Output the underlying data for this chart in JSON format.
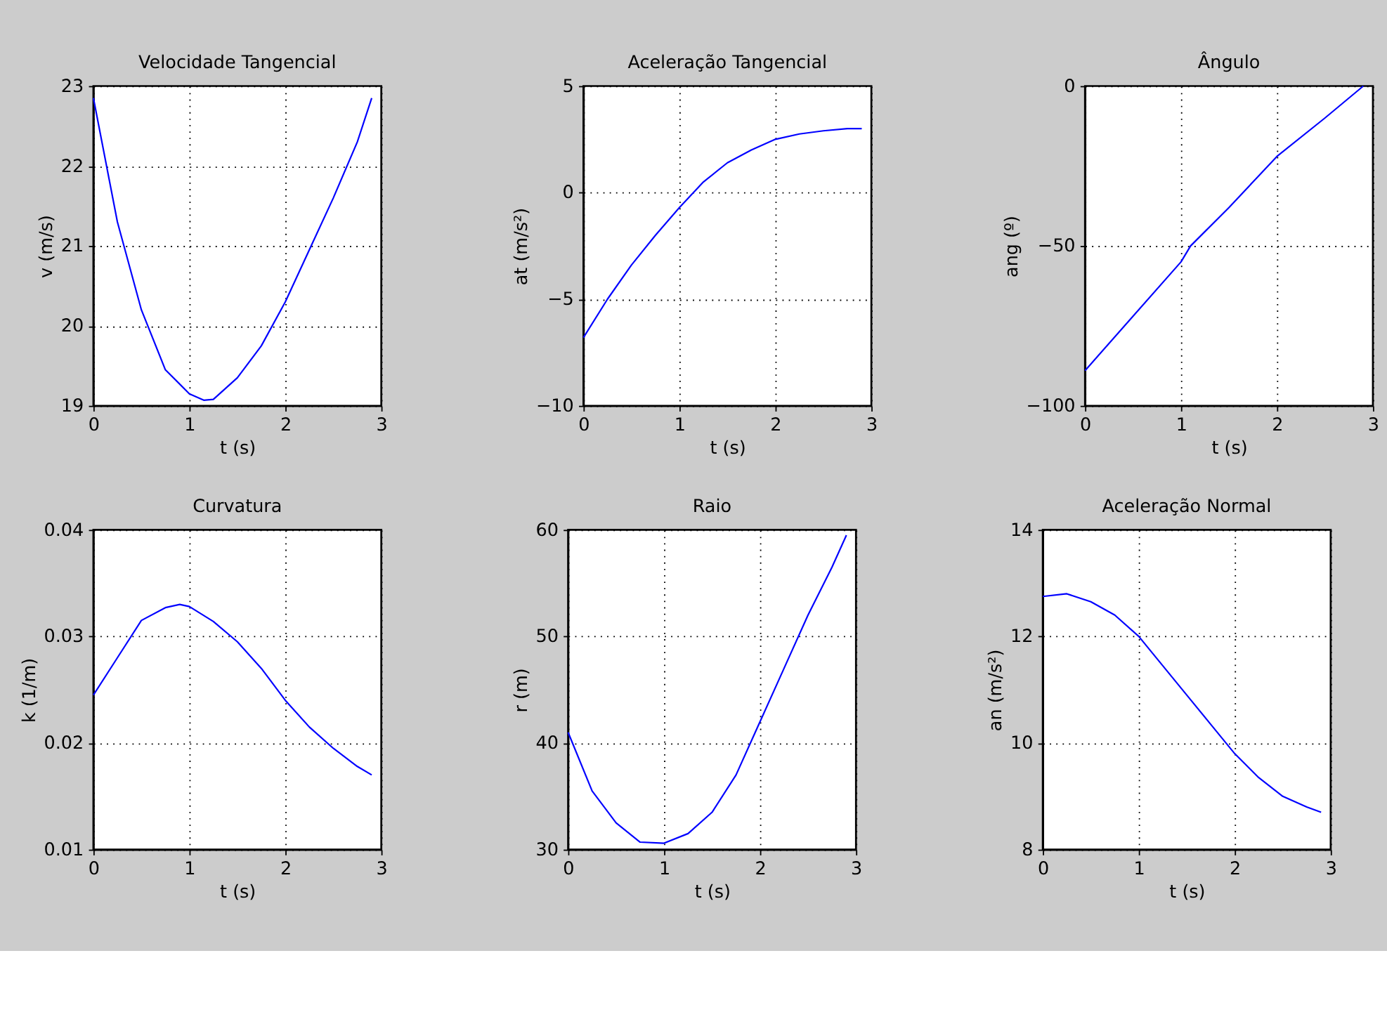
{
  "chart_data": [
    {
      "type": "line",
      "title": "Velocidade Tangencial",
      "xlabel": "t (s)",
      "ylabel": "v (m/s)",
      "xlim": [
        0,
        3
      ],
      "xticks": [
        0,
        1,
        2,
        3
      ],
      "ylim": [
        19,
        23
      ],
      "yticks": [
        19,
        20,
        21,
        22,
        23
      ],
      "grid": true,
      "x": [
        0,
        0.25,
        0.5,
        0.75,
        1.0,
        1.15,
        1.25,
        1.5,
        1.75,
        2.0,
        2.25,
        2.5,
        2.75,
        2.9
      ],
      "series": [
        {
          "color": "#0000ff",
          "values": [
            22.85,
            21.3,
            20.2,
            19.45,
            19.15,
            19.07,
            19.08,
            19.35,
            19.75,
            20.3,
            20.95,
            21.6,
            22.3,
            22.85
          ]
        }
      ]
    },
    {
      "type": "line",
      "title": "Aceleração Tangencial",
      "xlabel": "t (s)",
      "ylabel": "at (m/s²)",
      "xlim": [
        0,
        3
      ],
      "xticks": [
        0,
        1,
        2,
        3
      ],
      "ylim": [
        -10,
        5
      ],
      "yticks": [
        -10,
        -5,
        0,
        5
      ],
      "grid": true,
      "x": [
        0,
        0.25,
        0.5,
        0.75,
        1.0,
        1.25,
        1.5,
        1.75,
        2.0,
        2.25,
        2.5,
        2.75,
        2.9
      ],
      "series": [
        {
          "color": "#0000ff",
          "values": [
            -6.8,
            -5.0,
            -3.4,
            -2.0,
            -0.7,
            0.5,
            1.4,
            2.0,
            2.5,
            2.75,
            2.9,
            3.0,
            3.0
          ]
        }
      ]
    },
    {
      "type": "line",
      "title": "Ângulo",
      "xlabel": "t (s)",
      "ylabel": "ang (º)",
      "xlim": [
        0,
        3
      ],
      "xticks": [
        0,
        1,
        2,
        3
      ],
      "ylim": [
        -100,
        0
      ],
      "yticks": [
        -100,
        -50,
        0
      ],
      "grid": true,
      "x": [
        0,
        0.5,
        1.0,
        1.1,
        1.5,
        2.0,
        2.5,
        2.9
      ],
      "series": [
        {
          "color": "#0000ff",
          "values": [
            -89,
            -72,
            -55,
            -50,
            -38,
            -22,
            -10,
            0
          ]
        }
      ]
    },
    {
      "type": "line",
      "title": "Curvatura",
      "xlabel": "t (s)",
      "ylabel": "k (1/m)",
      "xlim": [
        0,
        3
      ],
      "xticks": [
        0,
        1,
        2,
        3
      ],
      "ylim": [
        0.01,
        0.04
      ],
      "yticks": [
        0.01,
        0.02,
        0.03,
        0.04
      ],
      "grid": true,
      "x": [
        0,
        0.25,
        0.5,
        0.75,
        0.9,
        1.0,
        1.25,
        1.5,
        1.75,
        2.0,
        2.25,
        2.5,
        2.75,
        2.9
      ],
      "series": [
        {
          "color": "#0000ff",
          "values": [
            0.0245,
            0.028,
            0.0315,
            0.0327,
            0.033,
            0.0328,
            0.0314,
            0.0295,
            0.027,
            0.024,
            0.0215,
            0.0195,
            0.0178,
            0.017
          ]
        }
      ]
    },
    {
      "type": "line",
      "title": "Raio",
      "xlabel": "t (s)",
      "ylabel": "r (m)",
      "xlim": [
        0,
        3
      ],
      "xticks": [
        0,
        1,
        2,
        3
      ],
      "ylim": [
        30,
        60
      ],
      "yticks": [
        30,
        40,
        50,
        60
      ],
      "grid": true,
      "x": [
        0,
        0.25,
        0.5,
        0.75,
        1.0,
        1.25,
        1.5,
        1.75,
        2.0,
        2.25,
        2.5,
        2.75,
        2.9
      ],
      "series": [
        {
          "color": "#0000ff",
          "values": [
            41,
            35.5,
            32.5,
            30.7,
            30.6,
            31.5,
            33.5,
            37,
            42,
            47,
            52,
            56.5,
            59.5
          ]
        }
      ]
    },
    {
      "type": "line",
      "title": "Aceleração Normal",
      "xlabel": "t (s)",
      "ylabel": "an (m/s²)",
      "xlim": [
        0,
        3
      ],
      "xticks": [
        0,
        1,
        2,
        3
      ],
      "ylim": [
        8,
        14
      ],
      "yticks": [
        8,
        10,
        12,
        14
      ],
      "grid": true,
      "x": [
        0,
        0.25,
        0.5,
        0.75,
        1.0,
        1.25,
        1.5,
        1.75,
        2.0,
        2.25,
        2.5,
        2.75,
        2.9
      ],
      "series": [
        {
          "color": "#0000ff",
          "values": [
            12.75,
            12.8,
            12.65,
            12.4,
            12.0,
            11.45,
            10.9,
            10.35,
            9.8,
            9.35,
            9.0,
            8.8,
            8.7
          ]
        }
      ]
    }
  ]
}
